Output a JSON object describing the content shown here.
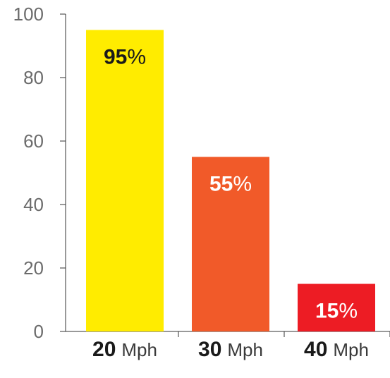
{
  "chart_data": {
    "type": "bar",
    "categories": [
      {
        "value": "20",
        "unit": "Mph"
      },
      {
        "value": "30",
        "unit": "Mph"
      },
      {
        "value": "40",
        "unit": "Mph"
      }
    ],
    "values": [
      95,
      55,
      15
    ],
    "data_labels": [
      {
        "value": "95",
        "suffix": "%"
      },
      {
        "value": "55",
        "suffix": "%"
      },
      {
        "value": "15",
        "suffix": "%"
      }
    ],
    "bar_colors": [
      "#ffec00",
      "#f15a29",
      "#ed1c24"
    ],
    "label_colors": [
      "#1a1a1a",
      "#ffffff",
      "#ffffff"
    ],
    "ylim": [
      0,
      100
    ],
    "yticks": [
      "0",
      "20",
      "40",
      "60",
      "80",
      "100"
    ],
    "grid": false,
    "title": "",
    "xlabel": "",
    "ylabel": ""
  }
}
